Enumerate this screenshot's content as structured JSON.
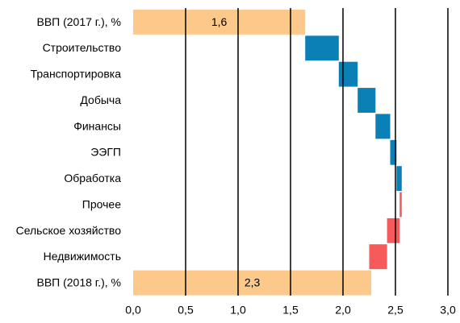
{
  "chart_data": {
    "type": "waterfall",
    "categories": [
      "ВВП (2017 г.), %",
      "Строительство",
      "Транспортировка",
      "Добыча",
      "Финансы",
      "ЭЭГП",
      "Обработка",
      "Прочее",
      "Сельское хозяйство",
      "Недвижимость",
      "ВВП (2018 г.), %"
    ],
    "values": [
      1.64,
      0.32,
      0.18,
      0.17,
      0.14,
      0.06,
      0.05,
      -0.02,
      -0.12,
      -0.17,
      2.27
    ],
    "value_labels": [
      "1,6",
      null,
      null,
      null,
      null,
      null,
      null,
      null,
      null,
      null,
      "2,3"
    ],
    "colors": {
      "total": "#fdc98a",
      "increase": "#0a80b6",
      "decrease": "#f65a5a"
    },
    "xlim": [
      0,
      3
    ],
    "xticks": [
      {
        "value": 0,
        "label": "0,0"
      },
      {
        "value": 0.5,
        "label": "0,5"
      },
      {
        "value": 1,
        "label": "1,0"
      },
      {
        "value": 1.5,
        "label": "1,5"
      },
      {
        "value": 2,
        "label": "2,0"
      },
      {
        "value": 2.5,
        "label": "2,5"
      },
      {
        "value": 3,
        "label": "3,0"
      }
    ],
    "grid": true
  }
}
